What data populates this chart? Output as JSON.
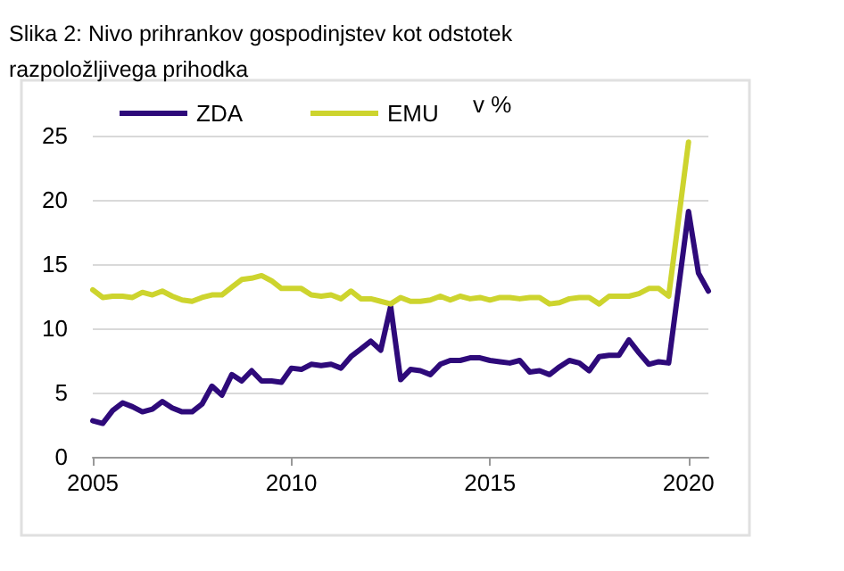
{
  "chart_data": {
    "type": "line",
    "title": "Slika 2: Nivo prihrankov gospodinjstev kot odstotek\nrazpoložljivega prihodka",
    "annotations": [
      "v %"
    ],
    "series": [
      {
        "name": "ZDA",
        "color": "#2e0a7a",
        "x": [
          2005,
          2005.25,
          2005.5,
          2005.75,
          2006,
          2006.25,
          2006.5,
          2006.75,
          2007,
          2007.25,
          2007.5,
          2007.75,
          2008,
          2008.25,
          2008.5,
          2008.75,
          2009,
          2009.25,
          2009.5,
          2009.75,
          2010,
          2010.25,
          2010.5,
          2010.75,
          2011,
          2011.25,
          2011.5,
          2011.75,
          2012,
          2012.25,
          2012.5,
          2012.75,
          2013,
          2013.25,
          2013.5,
          2013.75,
          2014,
          2014.25,
          2014.5,
          2014.75,
          2015,
          2015.25,
          2015.5,
          2015.75,
          2016,
          2016.25,
          2016.5,
          2016.75,
          2017,
          2017.25,
          2017.5,
          2017.75,
          2018,
          2018.25,
          2018.5,
          2018.75,
          2019,
          2019.25,
          2019.5,
          2020,
          2020.25,
          2020.5
        ],
        "values": [
          2.8,
          2.6,
          3.6,
          4.2,
          3.9,
          3.5,
          3.7,
          4.3,
          3.8,
          3.5,
          3.5,
          4.1,
          5.5,
          4.8,
          6.4,
          5.9,
          6.7,
          5.9,
          5.9,
          5.8,
          6.9,
          6.8,
          7.2,
          7.1,
          7.2,
          6.9,
          7.8,
          8.4,
          9.0,
          8.3,
          11.7,
          6.0,
          6.8,
          6.7,
          6.4,
          7.2,
          7.5,
          7.5,
          7.7,
          7.7,
          7.5,
          7.4,
          7.3,
          7.5,
          6.6,
          6.7,
          6.4,
          7.0,
          7.5,
          7.3,
          6.7,
          7.8,
          7.9,
          7.9,
          9.1,
          8.1,
          7.2,
          7.4,
          7.3,
          19.1,
          14.3,
          12.9
        ]
      },
      {
        "name": "EMU",
        "color": "#cdd42e",
        "x": [
          2005,
          2005.25,
          2005.5,
          2005.75,
          2006,
          2006.25,
          2006.5,
          2006.75,
          2007,
          2007.25,
          2007.5,
          2007.75,
          2008,
          2008.25,
          2008.5,
          2008.75,
          2009,
          2009.25,
          2009.5,
          2009.75,
          2010,
          2010.25,
          2010.5,
          2010.75,
          2011,
          2011.25,
          2011.5,
          2011.75,
          2012,
          2012.25,
          2012.5,
          2012.75,
          2013,
          2013.25,
          2013.5,
          2013.75,
          2014,
          2014.25,
          2014.5,
          2014.75,
          2015,
          2015.25,
          2015.5,
          2015.75,
          2016,
          2016.25,
          2016.5,
          2016.75,
          2017,
          2017.25,
          2017.5,
          2017.75,
          2018,
          2018.25,
          2018.5,
          2018.75,
          2019,
          2019.25,
          2019.5,
          2020
        ],
        "values": [
          13.0,
          12.4,
          12.5,
          12.5,
          12.4,
          12.8,
          12.6,
          12.9,
          12.5,
          12.2,
          12.1,
          12.4,
          12.6,
          12.6,
          13.2,
          13.8,
          13.9,
          14.1,
          13.7,
          13.1,
          13.1,
          13.1,
          12.6,
          12.5,
          12.6,
          12.3,
          12.9,
          12.3,
          12.3,
          12.1,
          11.9,
          12.4,
          12.1,
          12.1,
          12.2,
          12.5,
          12.2,
          12.5,
          12.3,
          12.4,
          12.2,
          12.4,
          12.4,
          12.3,
          12.4,
          12.4,
          11.9,
          12.0,
          12.3,
          12.4,
          12.4,
          11.9,
          12.5,
          12.5,
          12.5,
          12.7,
          13.1,
          13.1,
          12.5,
          24.5
        ]
      }
    ],
    "xlim": [
      2005,
      2020.5
    ],
    "xticks": [
      2005,
      2010,
      2015,
      2020
    ],
    "ylim": [
      0,
      25
    ],
    "yticks": [
      0,
      5,
      10,
      15,
      20,
      25
    ],
    "grid": "y",
    "legend": "top",
    "marker": "none",
    "line_style": "solid"
  }
}
